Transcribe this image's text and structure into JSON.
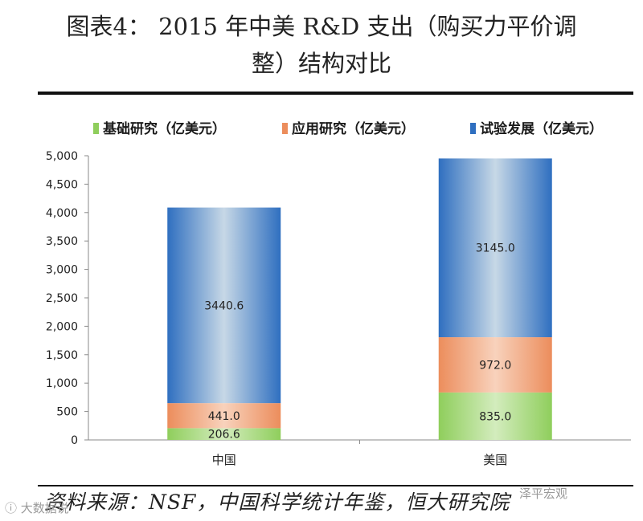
{
  "title_line1": "图表4：  2015 年中美 R&D 支出（购买力平价调",
  "title_line2": "整）结构对比",
  "legend": [
    {
      "label": "基础研究（亿美元）",
      "icon": "green-bar-icon"
    },
    {
      "label": "应用研究（亿美元）",
      "icon": "orange-bar-icon"
    },
    {
      "label": "试验发展（亿美元）",
      "icon": "blue-bar-icon"
    }
  ],
  "colors": {
    "basic": "#8fce5c",
    "applied": "#ec8d5c",
    "experimental_edge": "#2f6fc0",
    "experimental_center": "#c7d8e6"
  },
  "chart_data": {
    "type": "bar",
    "stacked": true,
    "categories": [
      "中国",
      "美国"
    ],
    "series": [
      {
        "name": "基础研究（亿美元）",
        "values": [
          206.6,
          835.0
        ]
      },
      {
        "name": "应用研究（亿美元）",
        "values": [
          441.0,
          972.0
        ]
      },
      {
        "name": "试验发展（亿美元）",
        "values": [
          3440.6,
          3145.0
        ]
      }
    ],
    "data_labels": [
      [
        "206.6",
        "835.0"
      ],
      [
        "441.0",
        "972.0"
      ],
      [
        "3440.6",
        "3145.0"
      ]
    ],
    "ylim": [
      0,
      5000
    ],
    "yticks": [
      0,
      500,
      1000,
      1500,
      2000,
      2500,
      3000,
      3500,
      4000,
      4500,
      5000
    ],
    "ytick_labels": [
      "0",
      "500",
      "1,000",
      "1,500",
      "2,000",
      "2,500",
      "3,000",
      "3,500",
      "4,000",
      "4,500",
      "5,000"
    ],
    "xlabel": "",
    "ylabel": "",
    "legend_position": "top"
  },
  "source": "资料来源：NSF，中国科学统计年鉴，恒大研究院",
  "watermark_left": "ⓘ 大数据说",
  "watermark_right": "泽平宏观"
}
